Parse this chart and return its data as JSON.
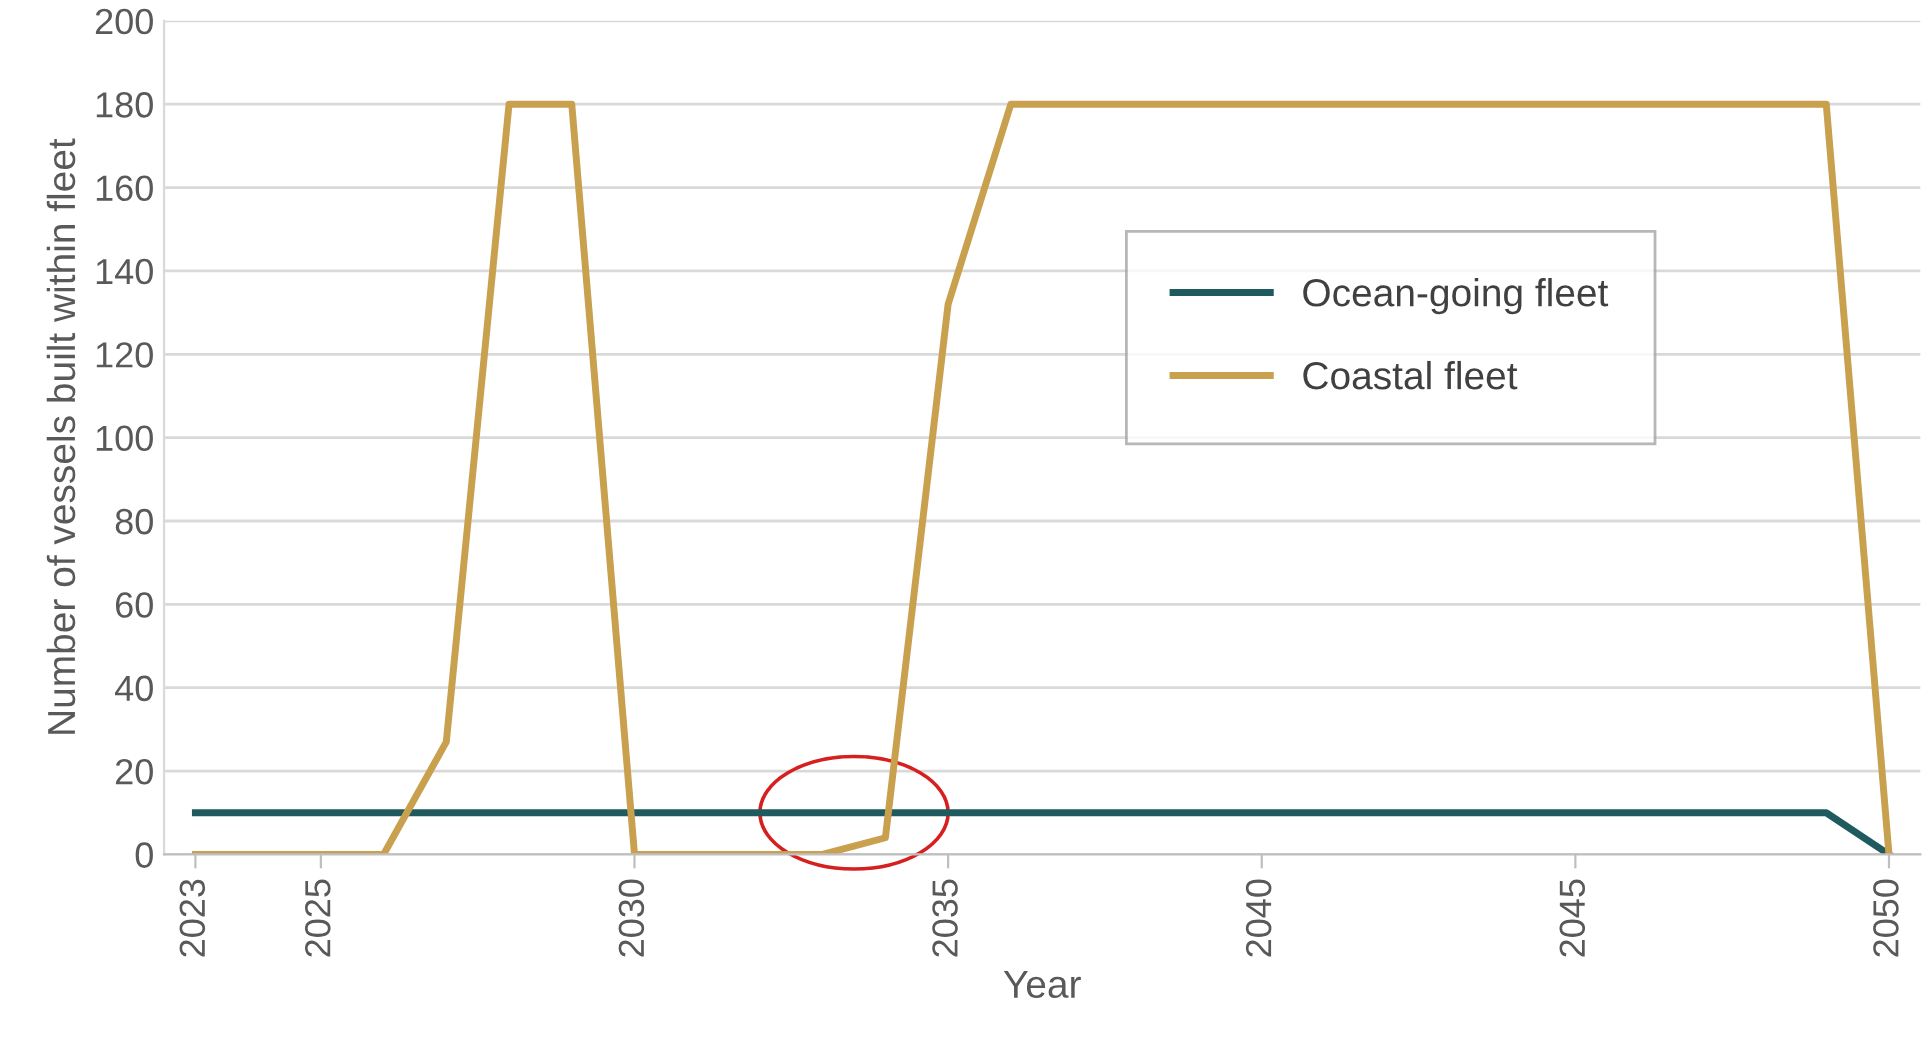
{
  "chart_data": {
    "type": "line",
    "xlabel": "Year",
    "ylabel": "Number of vessels built within fleet",
    "x": [
      2023,
      2024,
      2025,
      2026,
      2027,
      2028,
      2029,
      2030,
      2031,
      2032,
      2033,
      2034,
      2035,
      2036,
      2037,
      2038,
      2039,
      2040,
      2041,
      2042,
      2043,
      2044,
      2045,
      2046,
      2047,
      2048,
      2049,
      2050
    ],
    "series": [
      {
        "name": "Ocean-going fleet",
        "color": "#1f5a5e",
        "values": [
          10,
          10,
          10,
          10,
          10,
          10,
          10,
          10,
          10,
          10,
          10,
          10,
          10,
          10,
          10,
          10,
          10,
          10,
          10,
          10,
          10,
          10,
          10,
          10,
          10,
          10,
          10,
          0
        ]
      },
      {
        "name": "Coastal fleet",
        "color": "#c9a04e",
        "values": [
          0,
          0,
          0,
          0,
          27,
          180,
          180,
          0,
          0,
          0,
          0,
          4,
          132,
          180,
          180,
          180,
          180,
          180,
          180,
          180,
          180,
          180,
          180,
          180,
          180,
          180,
          180,
          0
        ]
      }
    ],
    "xlim": [
      2022.5,
      2050.5
    ],
    "xticks": [
      2023,
      2025,
      2030,
      2035,
      2040,
      2045,
      2050
    ],
    "ylim": [
      0,
      200
    ],
    "yticks": [
      0,
      20,
      40,
      60,
      80,
      100,
      120,
      140,
      160,
      180,
      200
    ],
    "grid": "y",
    "legend": "right",
    "marker": "none",
    "line_style": "solid"
  }
}
